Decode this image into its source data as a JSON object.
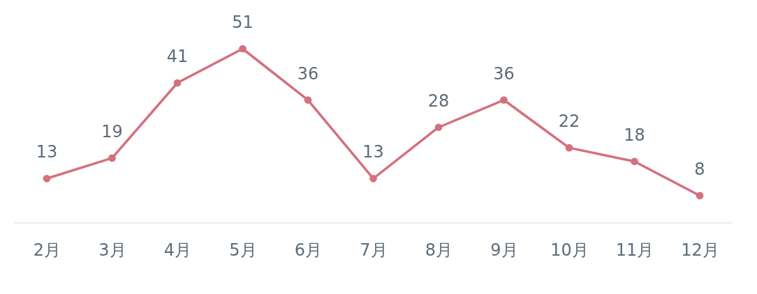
{
  "chart_data": {
    "type": "line",
    "categories": [
      "2月",
      "3月",
      "4月",
      "5月",
      "6月",
      "7月",
      "8月",
      "9月",
      "10月",
      "11月",
      "12月"
    ],
    "series": [
      {
        "color": "#d4707f",
        "values": [
          13,
          19,
          41,
          51,
          36,
          13,
          28,
          36,
          22,
          18,
          8
        ]
      }
    ],
    "tick_labels": "x",
    "data_labels": true,
    "marker": "circle"
  }
}
